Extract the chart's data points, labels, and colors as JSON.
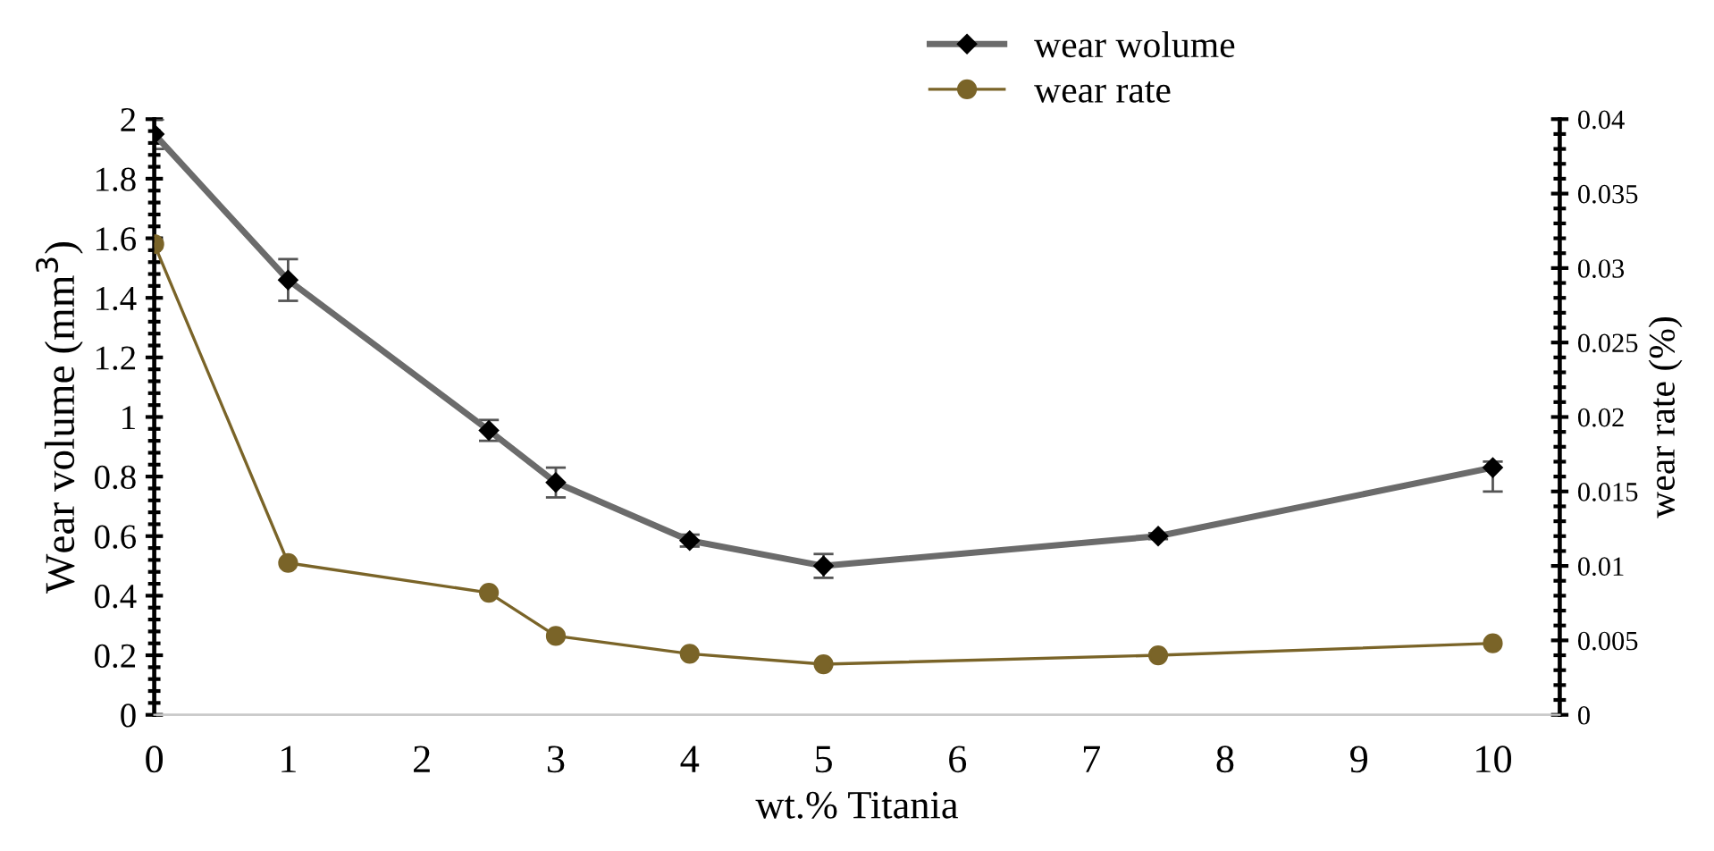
{
  "chart_data": {
    "type": "line",
    "xlabel": "wt.% Titania",
    "ylabel": "Wear volume (mm$^{3}$)",
    "y2label": "wear rate (%)",
    "x": [
      0,
      1,
      2.5,
      3,
      4,
      5,
      7.5,
      10
    ],
    "series": [
      {
        "name": "wear wolume",
        "color": "#6b6b6b",
        "marker": "diamond",
        "values": [
          1.95,
          1.46,
          0.955,
          0.78,
          0.585,
          0.5,
          0.6,
          0.83
        ],
        "errors": [
          0.05,
          0.07,
          0.035,
          0.05,
          0.02,
          0.04,
          0.01,
          [
            0.75,
            0.85
          ]
        ]
      },
      {
        "name": "wear rate",
        "color": "#7a6428",
        "marker": "circle",
        "axis": "y2",
        "values": [
          0.0316,
          0.0102,
          0.0082,
          0.0053,
          0.0041,
          0.0034,
          0.004,
          0.0048
        ]
      }
    ],
    "xlim": [
      0,
      10.5
    ],
    "xticks": [
      0,
      1,
      2,
      3,
      4,
      5,
      6,
      7,
      8,
      9,
      10
    ],
    "ylim": [
      0,
      2
    ],
    "yticks": [
      0,
      0.2,
      0.4,
      0.6,
      0.8,
      {
        "value": 1,
        "label": "1"
      },
      1.2,
      1.4,
      1.6,
      1.8,
      {
        "value": 2,
        "label": "2"
      }
    ],
    "y2lim": [
      0,
      0.04
    ],
    "y2ticks": [
      0,
      0.005,
      0.01,
      0.015,
      0.02,
      0.025,
      0.03,
      0.035,
      0.04
    ],
    "grid": false,
    "legend": "top right",
    "line_style": "solid"
  }
}
